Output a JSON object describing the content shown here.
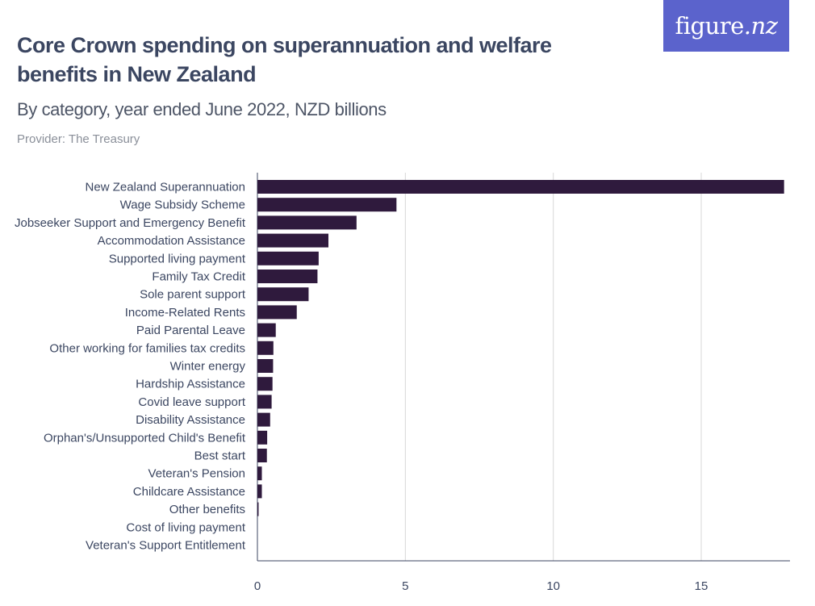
{
  "header": {
    "title": "Core Crown spending on superannuation and welfare benefits in New Zealand",
    "subtitle": "By category, year ended June 2022, NZD billions",
    "provider": "Provider: The Treasury",
    "logo_text": "figure.nz"
  },
  "colors": {
    "bar": "#2f1a3d",
    "grid": "#d7d7d7",
    "axis": "#3b4661",
    "logo_bg": "#5b63cc"
  },
  "chart_data": {
    "type": "bar",
    "orientation": "horizontal",
    "title": "Core Crown spending on superannuation and welfare benefits in New Zealand",
    "subtitle": "By category, year ended June 2022, NZD billions",
    "xlabel": "",
    "ylabel": "",
    "xlim": [
      0,
      18
    ],
    "xticks": [
      0,
      5,
      10,
      15
    ],
    "grid": true,
    "legend": "none",
    "categories": [
      "New Zealand Superannuation",
      "Wage Subsidy Scheme",
      "Jobseeker Support and Emergency Benefit",
      "Accommodation Assistance",
      "Supported living payment",
      "Family Tax Credit",
      "Sole parent support",
      "Income-Related Rents",
      "Paid Parental Leave",
      "Other working for families tax credits",
      "Winter energy",
      "Hardship Assistance",
      "Covid leave support",
      "Disability Assistance",
      "Orphan's/Unsupported Child's Benefit",
      "Best start",
      "Veteran's Pension",
      "Childcare Assistance",
      "Other benefits",
      "Cost of living payment",
      "Veteran's Support Entitlement"
    ],
    "values": [
      17.8,
      4.7,
      3.35,
      2.4,
      2.07,
      2.03,
      1.73,
      1.33,
      0.62,
      0.54,
      0.53,
      0.51,
      0.48,
      0.43,
      0.33,
      0.32,
      0.15,
      0.15,
      0.04,
      0.0,
      0.0
    ]
  }
}
